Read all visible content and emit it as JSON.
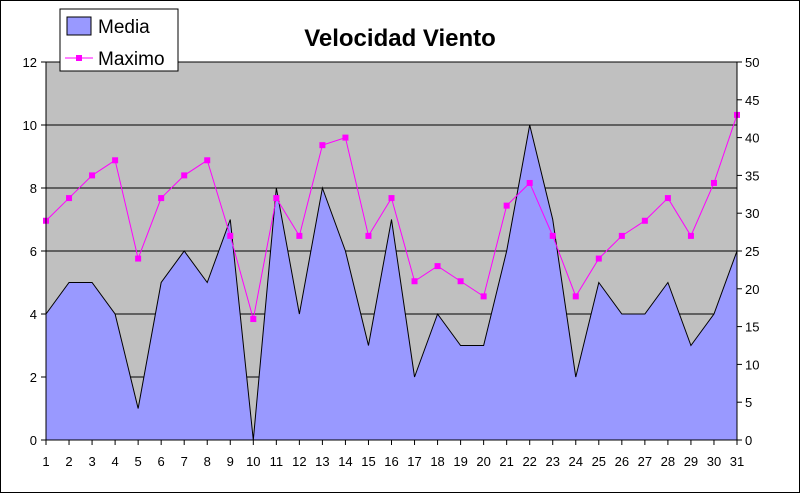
{
  "chart_data": {
    "type": "area",
    "title": "Velocidad Viento",
    "x": [
      "1",
      "2",
      "3",
      "4",
      "5",
      "6",
      "7",
      "8",
      "9",
      "10",
      "11",
      "12",
      "13",
      "14",
      "15",
      "16",
      "17",
      "18",
      "19",
      "20",
      "21",
      "22",
      "23",
      "24",
      "25",
      "26",
      "27",
      "28",
      "29",
      "30",
      "31"
    ],
    "series": [
      {
        "name": "Media",
        "type": "area",
        "axis": "left",
        "values": [
          4,
          5,
          5,
          4,
          1,
          5,
          6,
          5,
          7,
          0,
          8,
          4,
          8,
          6,
          3,
          7,
          2,
          4,
          3,
          3,
          6,
          10,
          7,
          2,
          5,
          4,
          4,
          5,
          3,
          4,
          6
        ]
      },
      {
        "name": "Maximo",
        "type": "line",
        "axis": "right",
        "values": [
          29,
          32,
          35,
          37,
          24,
          32,
          35,
          37,
          27,
          16,
          32,
          27,
          39,
          40,
          27,
          32,
          21,
          23,
          21,
          19,
          31,
          34,
          27,
          19,
          24,
          27,
          29,
          32,
          27,
          34,
          43
        ]
      }
    ],
    "y_left": {
      "lim": [
        0,
        12
      ],
      "ticks": [
        "0",
        "2",
        "4",
        "6",
        "8",
        "10",
        "12"
      ]
    },
    "y_right": {
      "lim": [
        0,
        50
      ],
      "ticks": [
        "0",
        "5",
        "10",
        "15",
        "20",
        "25",
        "30",
        "35",
        "40",
        "45",
        "50"
      ]
    },
    "grid": true,
    "legend": "top-left",
    "colors": {
      "plot_bg": "#C0C0C0",
      "media_fill": "#9999FF",
      "maximo": "#FF00FF",
      "grid": "#000000"
    }
  }
}
